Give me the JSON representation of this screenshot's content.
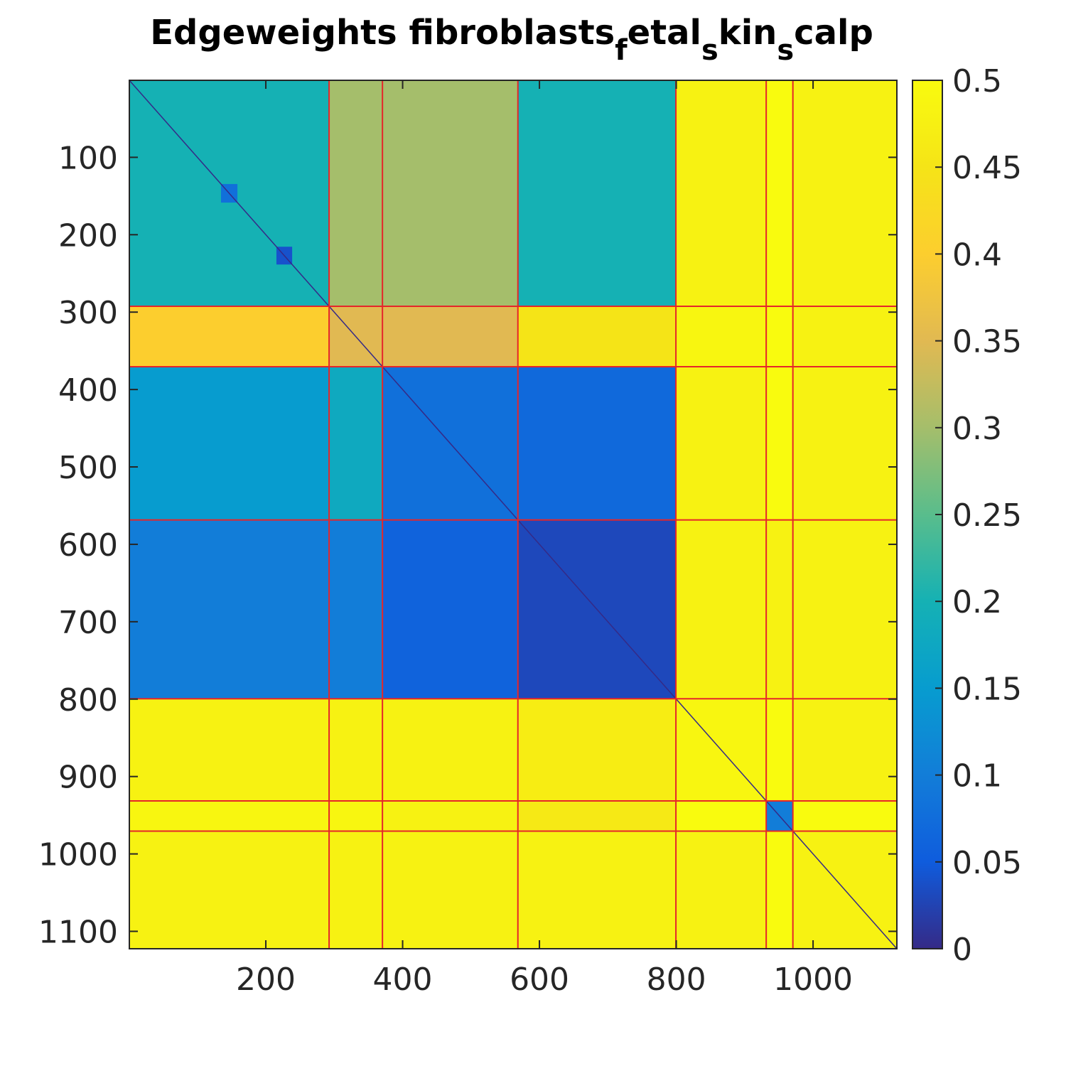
{
  "chart_data": {
    "type": "heatmap",
    "title": {
      "parts": [
        {
          "text": "Edgeweights fibroblasts",
          "sub": false
        },
        {
          "text": "f",
          "sub": true
        },
        {
          "text": "etal",
          "sub": false
        },
        {
          "text": "s",
          "sub": true
        },
        {
          "text": "kin",
          "sub": false
        },
        {
          "text": "s",
          "sub": true
        },
        {
          "text": "calp",
          "sub": false
        }
      ]
    },
    "matrix_size": 1122,
    "xlim": [
      0.5,
      1122.5
    ],
    "ylim": [
      0.5,
      1122.5
    ],
    "y_reversed": true,
    "x_ticks": [
      200,
      400,
      600,
      800,
      1000
    ],
    "y_ticks": [
      100,
      200,
      300,
      400,
      500,
      600,
      700,
      800,
      900,
      1000,
      1100
    ],
    "x_tick_labels": [
      "200",
      "400",
      "600",
      "800",
      "1000"
    ],
    "y_tick_labels": [
      "100",
      "200",
      "300",
      "400",
      "500",
      "600",
      "700",
      "800",
      "900",
      "1000",
      "1100"
    ],
    "boundaries": [
      292,
      370,
      568,
      799,
      931,
      970
    ],
    "block_values": [
      [
        0.2,
        0.3,
        0.3,
        0.2,
        0.48,
        0.5,
        0.48
      ],
      [
        0.4,
        0.35,
        0.35,
        0.45,
        0.49,
        0.5,
        0.48
      ],
      [
        0.15,
        0.18,
        0.08,
        0.07,
        0.48,
        0.5,
        0.48
      ],
      [
        0.1,
        0.1,
        0.06,
        0.03,
        0.48,
        0.48,
        0.48
      ],
      [
        0.48,
        0.48,
        0.48,
        0.47,
        0.49,
        0.5,
        0.48
      ],
      [
        0.49,
        0.49,
        0.48,
        0.46,
        0.5,
        0.1,
        0.5
      ],
      [
        0.48,
        0.48,
        0.48,
        0.48,
        0.48,
        0.5,
        0.48
      ]
    ],
    "highlight_blocks": [
      {
        "start": 134,
        "end": 158,
        "value": 0.08
      },
      {
        "start": 215,
        "end": 238,
        "value": 0.04
      },
      {
        "start": 931,
        "end": 970,
        "value": 0.1
      }
    ],
    "diagonal_value": 0.0,
    "boundary_line_color": "#e5262a",
    "colormap": "parula",
    "colorbar": {
      "range": [
        0,
        0.5
      ],
      "ticks": [
        0,
        0.05,
        0.1,
        0.15,
        0.2,
        0.25,
        0.3,
        0.35,
        0.4,
        0.45,
        0.5
      ],
      "tick_labels": [
        "0",
        "0.05",
        "0.1",
        "0.15",
        "0.2",
        "0.25",
        "0.3",
        "0.35",
        "0.4",
        "0.45",
        "0.5"
      ]
    },
    "grid": false
  }
}
